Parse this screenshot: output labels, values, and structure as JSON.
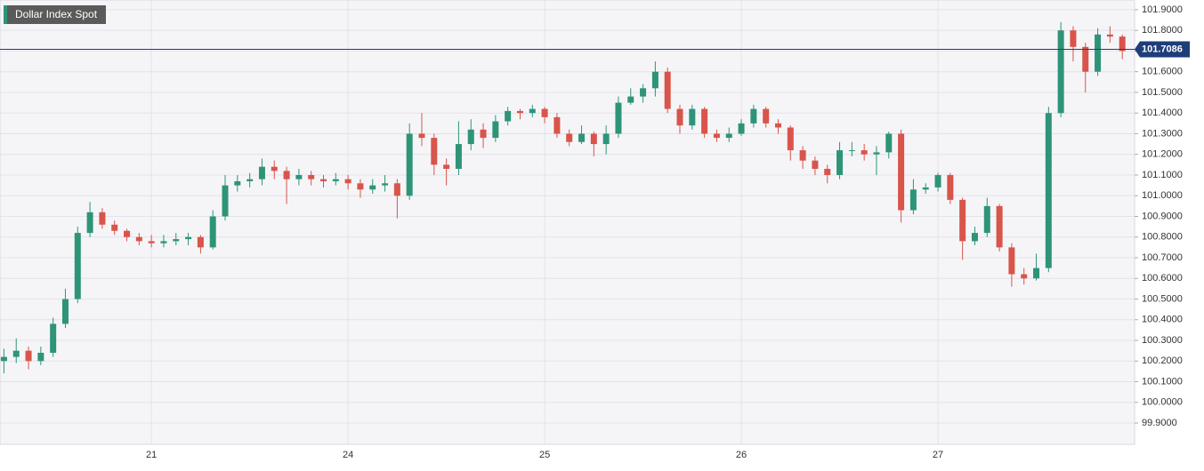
{
  "chart_data": {
    "type": "candlestick",
    "title": "Dollar Index Spot",
    "x": [
      -0.75,
      -0.6875,
      -0.625,
      -0.5625,
      -0.5,
      -0.4375,
      -0.375,
      -0.3125,
      -0.25,
      -0.1875,
      -0.125,
      -0.0625,
      0,
      0.0625,
      0.125,
      0.1875,
      0.25,
      0.3125,
      0.375,
      0.4375,
      0.5,
      0.5625,
      0.625,
      0.6875,
      0.75,
      0.8125,
      0.875,
      0.9375,
      1,
      1.0625,
      1.125,
      1.1875,
      1.25,
      1.3125,
      1.375,
      1.4375,
      1.5,
      1.5625,
      1.625,
      1.6875,
      1.75,
      1.8125,
      1.875,
      1.9375,
      2,
      2.0625,
      2.125,
      2.1875,
      2.25,
      2.3125,
      2.375,
      2.4375,
      2.5,
      2.5625,
      2.625,
      2.6875,
      2.75,
      2.8125,
      2.875,
      2.9375,
      3,
      3.0625,
      3.125,
      3.1875,
      3.25,
      3.3125,
      3.375,
      3.4375,
      3.5,
      3.5625,
      3.625,
      3.6875,
      3.75,
      3.8125,
      3.875,
      3.9375,
      4,
      4.0625,
      4.125,
      4.1875,
      4.25,
      4.3125,
      4.375,
      4.4375,
      4.5,
      4.5625,
      4.625,
      4.6875,
      4.75,
      4.8125,
      4.875,
      4.9375
    ],
    "open": [
      100.2,
      100.22,
      100.25,
      100.2,
      100.24,
      100.38,
      100.5,
      100.82,
      100.92,
      100.86,
      100.83,
      100.8,
      100.78,
      100.77,
      100.78,
      100.79,
      100.8,
      100.75,
      100.9,
      101.05,
      101.07,
      101.08,
      101.14,
      101.12,
      101.08,
      101.1,
      101.08,
      101.07,
      101.08,
      101.06,
      101.03,
      101.05,
      101.06,
      101.0,
      101.3,
      101.28,
      101.15,
      101.13,
      101.25,
      101.32,
      101.28,
      101.36,
      101.41,
      101.4,
      101.42,
      101.38,
      101.3,
      101.26,
      101.3,
      101.25,
      101.3,
      101.45,
      101.48,
      101.52,
      101.6,
      101.42,
      101.34,
      101.42,
      101.3,
      101.28,
      101.3,
      101.35,
      101.42,
      101.35,
      101.33,
      101.22,
      101.17,
      101.13,
      101.1,
      101.22,
      101.22,
      101.2,
      101.21,
      101.3,
      100.93,
      101.03,
      101.04,
      101.1,
      100.98,
      100.78,
      100.82,
      100.95,
      100.75,
      100.62,
      100.6,
      100.65,
      101.4,
      101.8,
      101.72,
      101.6,
      101.78,
      101.77
    ],
    "high": [
      100.26,
      100.31,
      100.27,
      100.27,
      100.41,
      100.55,
      100.85,
      100.97,
      100.94,
      100.88,
      100.84,
      100.82,
      100.81,
      100.81,
      100.82,
      100.82,
      100.81,
      100.93,
      101.1,
      101.1,
      101.11,
      101.18,
      101.17,
      101.14,
      101.13,
      101.12,
      101.1,
      101.11,
      101.1,
      101.08,
      101.08,
      101.1,
      101.08,
      101.35,
      101.4,
      101.3,
      101.18,
      101.36,
      101.37,
      101.35,
      101.39,
      101.43,
      101.42,
      101.44,
      101.43,
      101.4,
      101.32,
      101.34,
      101.31,
      101.34,
      101.48,
      101.52,
      101.54,
      101.65,
      101.62,
      101.44,
      101.44,
      101.43,
      101.32,
      101.33,
      101.37,
      101.44,
      101.43,
      101.37,
      101.34,
      101.24,
      101.19,
      101.15,
      101.26,
      101.26,
      101.25,
      101.24,
      101.31,
      101.32,
      101.08,
      101.06,
      101.11,
      101.11,
      100.99,
      100.85,
      100.99,
      100.96,
      100.77,
      100.65,
      100.72,
      101.43,
      101.84,
      101.82,
      101.74,
      101.81,
      101.82,
      101.78
    ],
    "low": [
      100.14,
      100.19,
      100.16,
      100.18,
      100.22,
      100.36,
      100.48,
      100.8,
      100.84,
      100.81,
      100.78,
      100.76,
      100.75,
      100.75,
      100.76,
      100.76,
      100.72,
      100.74,
      100.88,
      101.02,
      101.04,
      101.05,
      101.08,
      100.96,
      101.05,
      101.05,
      101.04,
      101.05,
      101.03,
      100.99,
      101.01,
      101.02,
      100.89,
      100.98,
      101.24,
      101.1,
      101.05,
      101.1,
      101.22,
      101.23,
      101.26,
      101.34,
      101.37,
      101.38,
      101.35,
      101.28,
      101.24,
      101.25,
      101.19,
      101.2,
      101.28,
      101.44,
      101.45,
      101.48,
      101.4,
      101.3,
      101.32,
      101.28,
      101.26,
      101.26,
      101.29,
      101.33,
      101.33,
      101.3,
      101.17,
      101.13,
      101.1,
      101.06,
      101.08,
      101.19,
      101.17,
      101.1,
      101.18,
      100.87,
      100.91,
      101.01,
      101.02,
      100.96,
      100.69,
      100.76,
      100.8,
      100.73,
      100.56,
      100.57,
      100.59,
      100.63,
      101.38,
      101.65,
      101.5,
      101.58,
      101.74,
      101.66
    ],
    "close": [
      100.22,
      100.25,
      100.2,
      100.24,
      100.38,
      100.5,
      100.82,
      100.92,
      100.86,
      100.83,
      100.8,
      100.78,
      100.77,
      100.78,
      100.79,
      100.8,
      100.75,
      100.9,
      101.05,
      101.07,
      101.08,
      101.14,
      101.12,
      101.08,
      101.1,
      101.08,
      101.07,
      101.08,
      101.06,
      101.03,
      101.05,
      101.06,
      101.0,
      101.3,
      101.28,
      101.15,
      101.13,
      101.25,
      101.32,
      101.28,
      101.36,
      101.41,
      101.4,
      101.42,
      101.38,
      101.3,
      101.26,
      101.3,
      101.25,
      101.3,
      101.45,
      101.48,
      101.52,
      101.6,
      101.42,
      101.34,
      101.42,
      101.3,
      101.28,
      101.3,
      101.35,
      101.42,
      101.35,
      101.33,
      101.22,
      101.17,
      101.13,
      101.1,
      101.22,
      101.22,
      101.2,
      101.21,
      101.3,
      100.93,
      101.03,
      101.04,
      101.1,
      100.98,
      100.78,
      100.82,
      100.95,
      100.75,
      100.62,
      100.6,
      100.65,
      101.4,
      101.8,
      101.72,
      101.6,
      101.78,
      101.77,
      101.7
    ],
    "up_color": "#2e9478",
    "down_color": "#d9544a",
    "last_price": 101.7086,
    "last_price_color": "#1f3d7a",
    "xlim": [
      -0.77,
      5.0
    ],
    "xticks": [
      {
        "value": 0,
        "label": "21"
      },
      {
        "value": 1,
        "label": "24"
      },
      {
        "value": 2,
        "label": "25"
      },
      {
        "value": 3,
        "label": "26"
      },
      {
        "value": 4,
        "label": "27"
      }
    ],
    "ylim": [
      99.797,
      101.947
    ],
    "yticks": [
      {
        "value": 99.9,
        "label": "99.9000"
      },
      {
        "value": 100.0,
        "label": "100.0000"
      },
      {
        "value": 100.1,
        "label": "100.1000"
      },
      {
        "value": 100.2,
        "label": "100.2000"
      },
      {
        "value": 100.3,
        "label": "100.3000"
      },
      {
        "value": 100.4,
        "label": "100.4000"
      },
      {
        "value": 100.5,
        "label": "100.5000"
      },
      {
        "value": 100.6,
        "label": "100.6000"
      },
      {
        "value": 100.7,
        "label": "100.7000"
      },
      {
        "value": 100.8,
        "label": "100.8000"
      },
      {
        "value": 100.9,
        "label": "100.9000"
      },
      {
        "value": 101.0,
        "label": "101.0000"
      },
      {
        "value": 101.1,
        "label": "101.1000"
      },
      {
        "value": 101.2,
        "label": "101.2000"
      },
      {
        "value": 101.3,
        "label": "101.3000"
      },
      {
        "value": 101.4,
        "label": "101.4000"
      },
      {
        "value": 101.5,
        "label": "101.5000"
      },
      {
        "value": 101.6,
        "label": "101.6000"
      },
      {
        "value": 101.7,
        "label": "101.7000"
      },
      {
        "value": 101.8,
        "label": "101.8000"
      },
      {
        "value": 101.9,
        "label": "101.9000"
      }
    ],
    "grid": true
  }
}
